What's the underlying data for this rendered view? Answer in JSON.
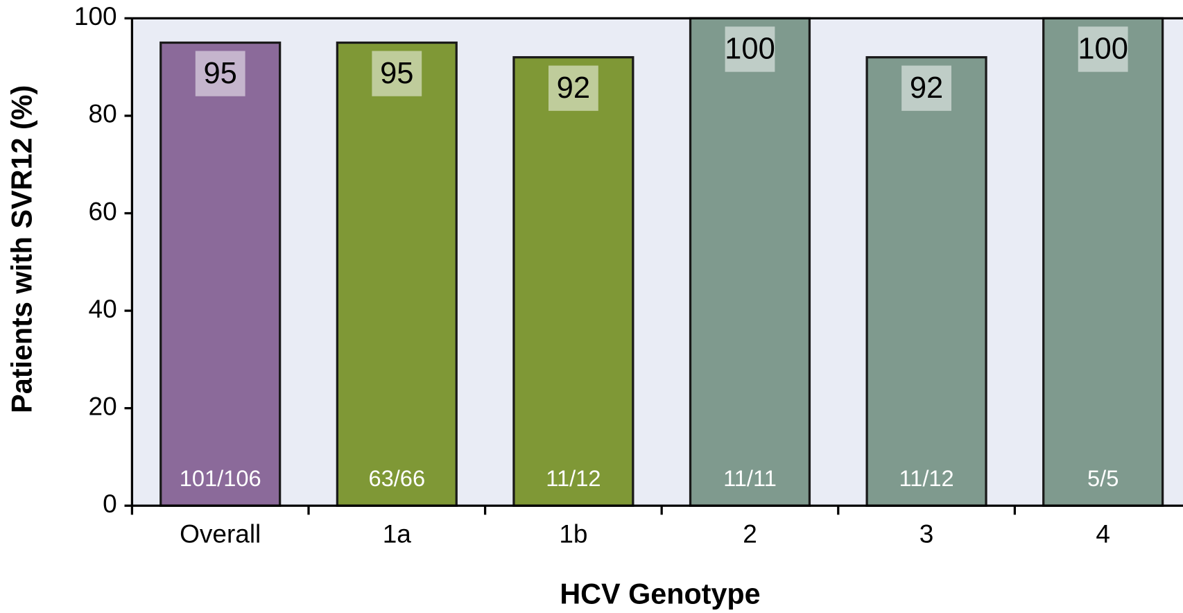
{
  "chart_data": {
    "type": "bar",
    "xlabel": "HCV Genotype",
    "ylabel": "Patients with SVR12 (%)",
    "categories": [
      "Overall",
      "1a",
      "1b",
      "2",
      "3",
      "4"
    ],
    "values": [
      95,
      95,
      92,
      100,
      92,
      100
    ],
    "counts": [
      "101/106",
      "63/66",
      "11/12",
      "11/11",
      "11/12",
      "5/5"
    ],
    "colors": [
      "#8b6a9a",
      "#7f9836",
      "#7f9836",
      "#7f9a8e",
      "#7f9a8e",
      "#7f9a8e"
    ],
    "ylim": [
      0,
      100
    ],
    "yticks": [
      0,
      20,
      40,
      60,
      80,
      100
    ]
  }
}
